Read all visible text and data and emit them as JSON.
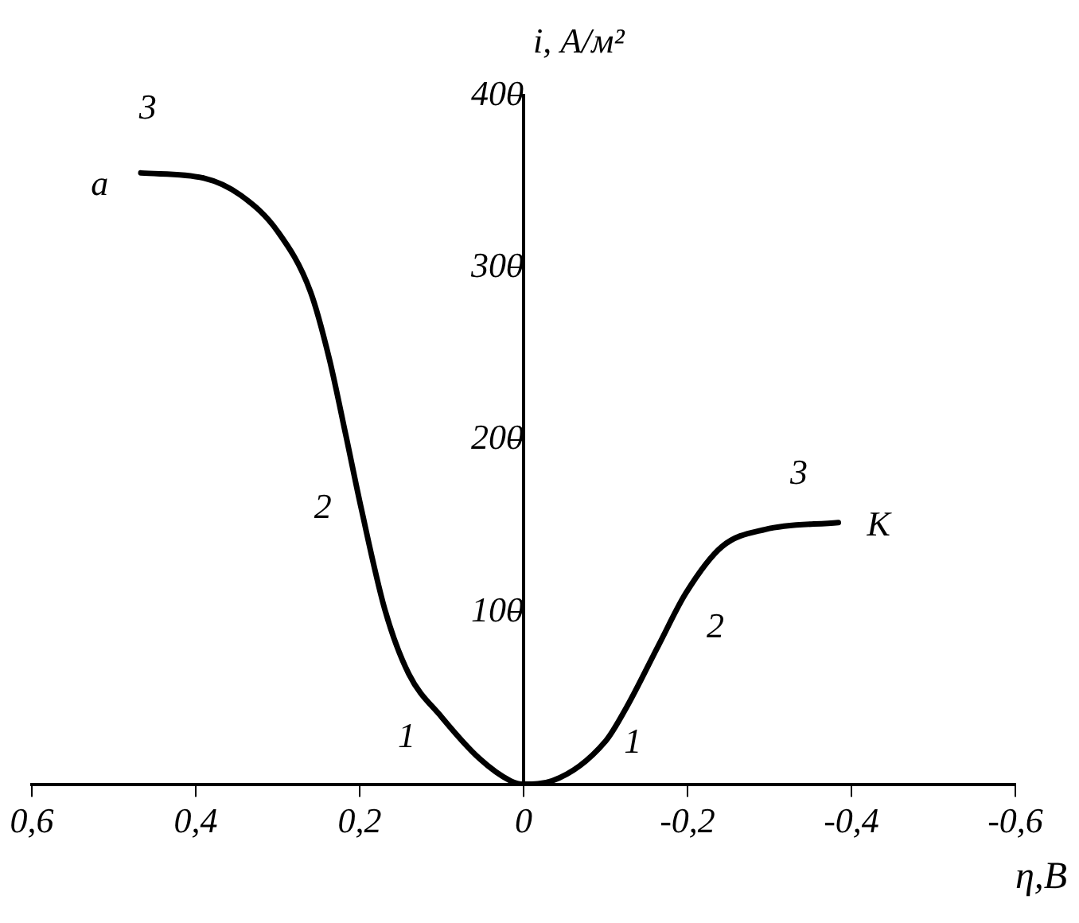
{
  "chart_data": {
    "type": "line",
    "xlabel": "η,В",
    "ylabel": "i, А/м²",
    "xlim": [
      0.6,
      -0.6
    ],
    "xticks": [
      {
        "value": 0.6,
        "label": "0,6"
      },
      {
        "value": 0.4,
        "label": "0,4"
      },
      {
        "value": 0.2,
        "label": "0,2"
      },
      0,
      {
        "value": -0.2,
        "label": "-0,2"
      },
      {
        "value": -0.4,
        "label": "-0,4"
      },
      {
        "value": -0.6,
        "label": "-0,6"
      }
    ],
    "ylim": [
      0,
      400
    ],
    "yticks": [
      100,
      200,
      300,
      400
    ],
    "grid": false,
    "legend": false,
    "marker": "none",
    "line_style": "solid",
    "series": [
      {
        "color": "#000000",
        "x": [
          0.467,
          0.39,
          0.345,
          0.3,
          0.26,
          0.237,
          0.217,
          0.198,
          0.169,
          0.14,
          0.1,
          0.054,
          0.016,
          0,
          -0.035,
          -0.1,
          -0.126,
          -0.165,
          -0.198,
          -0.242,
          -0.295,
          -0.384
        ],
        "values": [
          355,
          352,
          342,
          321,
          286,
          247,
          203,
          160,
          101,
          64,
          39,
          15,
          2,
          0,
          2,
          25,
          45,
          81,
          111,
          138,
          148,
          152
        ]
      }
    ],
    "annotations": [
      "a",
      "3",
      "2",
      "1",
      "1",
      "2",
      "3",
      "K"
    ]
  }
}
